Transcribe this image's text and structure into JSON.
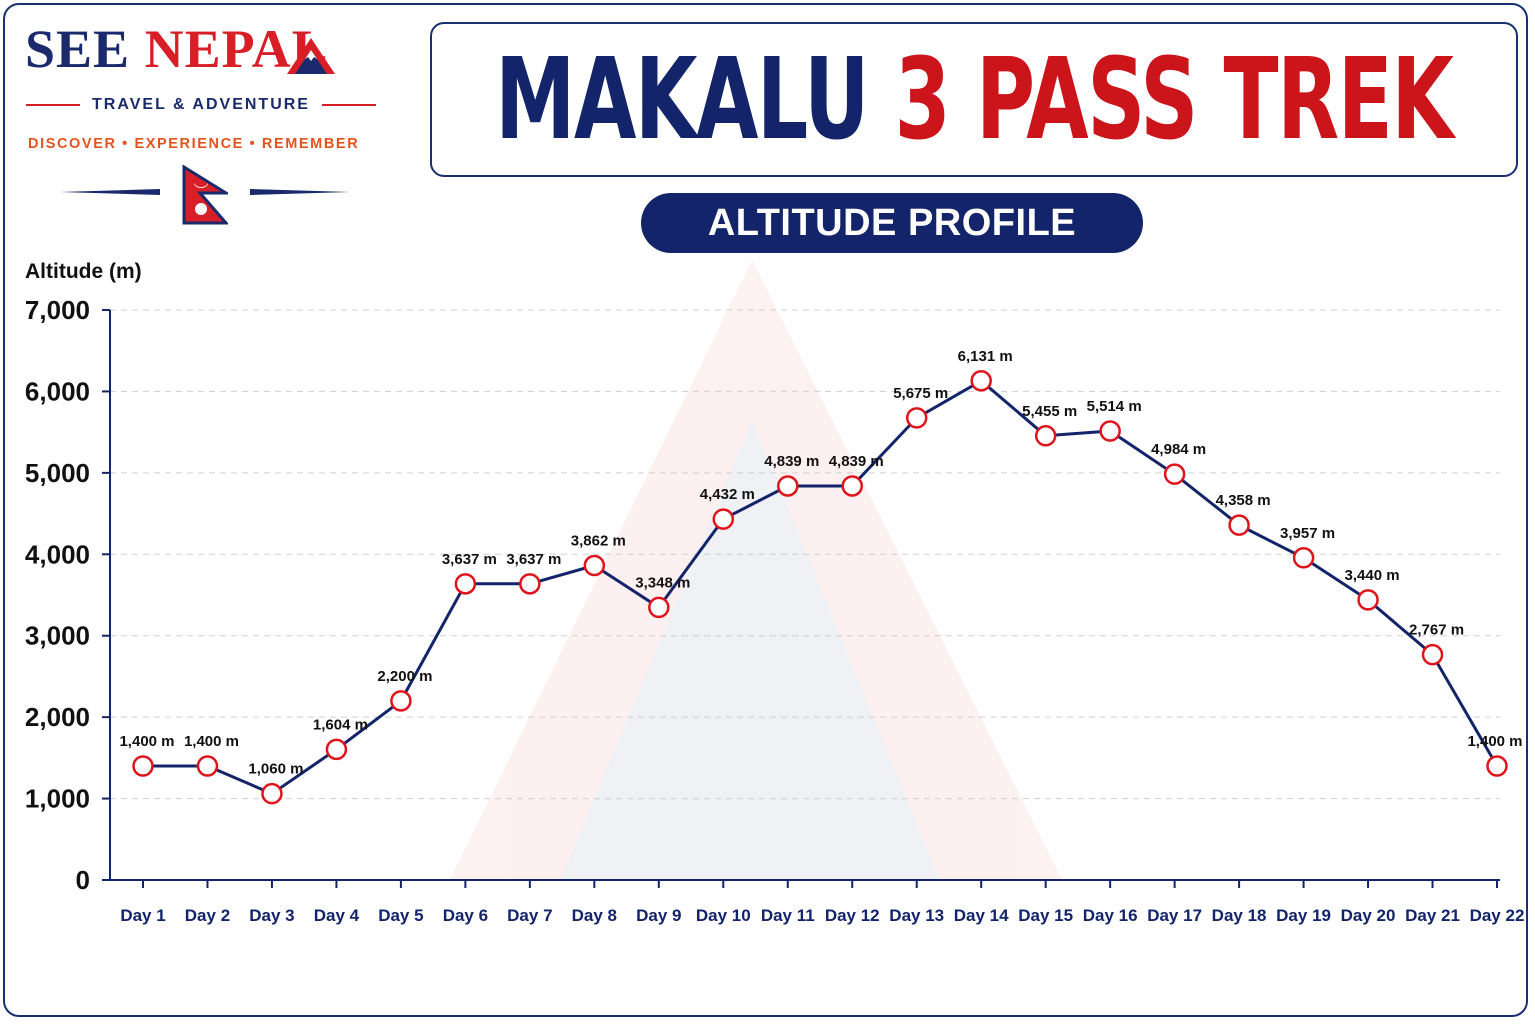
{
  "brand": {
    "name_part1": "SEE",
    "name_part2": "NEPAL",
    "tagline": "TRAVEL & ADVENTURE",
    "motto": "DISCOVER • EXPERIENCE • REMEMBER",
    "flag_icon": "nepal-flag-icon",
    "mountain_icon": "mountain-icon"
  },
  "title": {
    "part1": "MAKALU",
    "part2": "3 PASS TREK"
  },
  "subtitle": "ALTITUDE PROFILE",
  "colors": {
    "navy": "#14246a",
    "red": "#cc141b",
    "orange": "#e2541d",
    "grid": "#d0d0d0"
  },
  "chart_data": {
    "type": "line",
    "title": "MAKALU 3 PASS TREK",
    "subtitle": "ALTITUDE PROFILE",
    "ylabel": "Altitude (m)",
    "xlabel": "",
    "ylim": [
      0,
      7000
    ],
    "yticks": [
      0,
      1000,
      2000,
      3000,
      4000,
      5000,
      6000,
      7000
    ],
    "ytick_labels": [
      "0",
      "1,000",
      "2,000",
      "3,000",
      "4,000",
      "5,000",
      "6,000",
      "7,000"
    ],
    "grid": "horizontal dashed",
    "categories": [
      "Day 1",
      "Day 2",
      "Day 3",
      "Day 4",
      "Day 5",
      "Day 6",
      "Day 7",
      "Day 8",
      "Day 9",
      "Day 10",
      "Day 11",
      "Day 12",
      "Day 13",
      "Day 14",
      "Day 15",
      "Day 16",
      "Day 17",
      "Day 18",
      "Day 19",
      "Day 20",
      "Day 21",
      "Day 22"
    ],
    "series": [
      {
        "values": [
          1400,
          1400,
          1060,
          1604,
          2200,
          3637,
          3637,
          3862,
          3348,
          4432,
          4839,
          4839,
          5675,
          6131,
          5455,
          5514,
          4984,
          4358,
          3957,
          3440,
          2767,
          1400
        ],
        "labels": [
          "1,400 m",
          "1,400 m",
          "1,060 m",
          "1,604 m",
          "2,200 m",
          "3,637 m",
          "3,637 m",
          "3,862 m",
          "3,348 m",
          "4,432 m",
          "4,839 m",
          "4,839 m",
          "5,675 m",
          "6,131 m",
          "5,455 m",
          "5,514 m",
          "4,984 m",
          "4,358 m",
          "3,957 m",
          "3,440 m",
          "2,767 m",
          "1,400 m"
        ],
        "line_color": "#14246a",
        "marker_color": "#e0141b"
      }
    ]
  }
}
